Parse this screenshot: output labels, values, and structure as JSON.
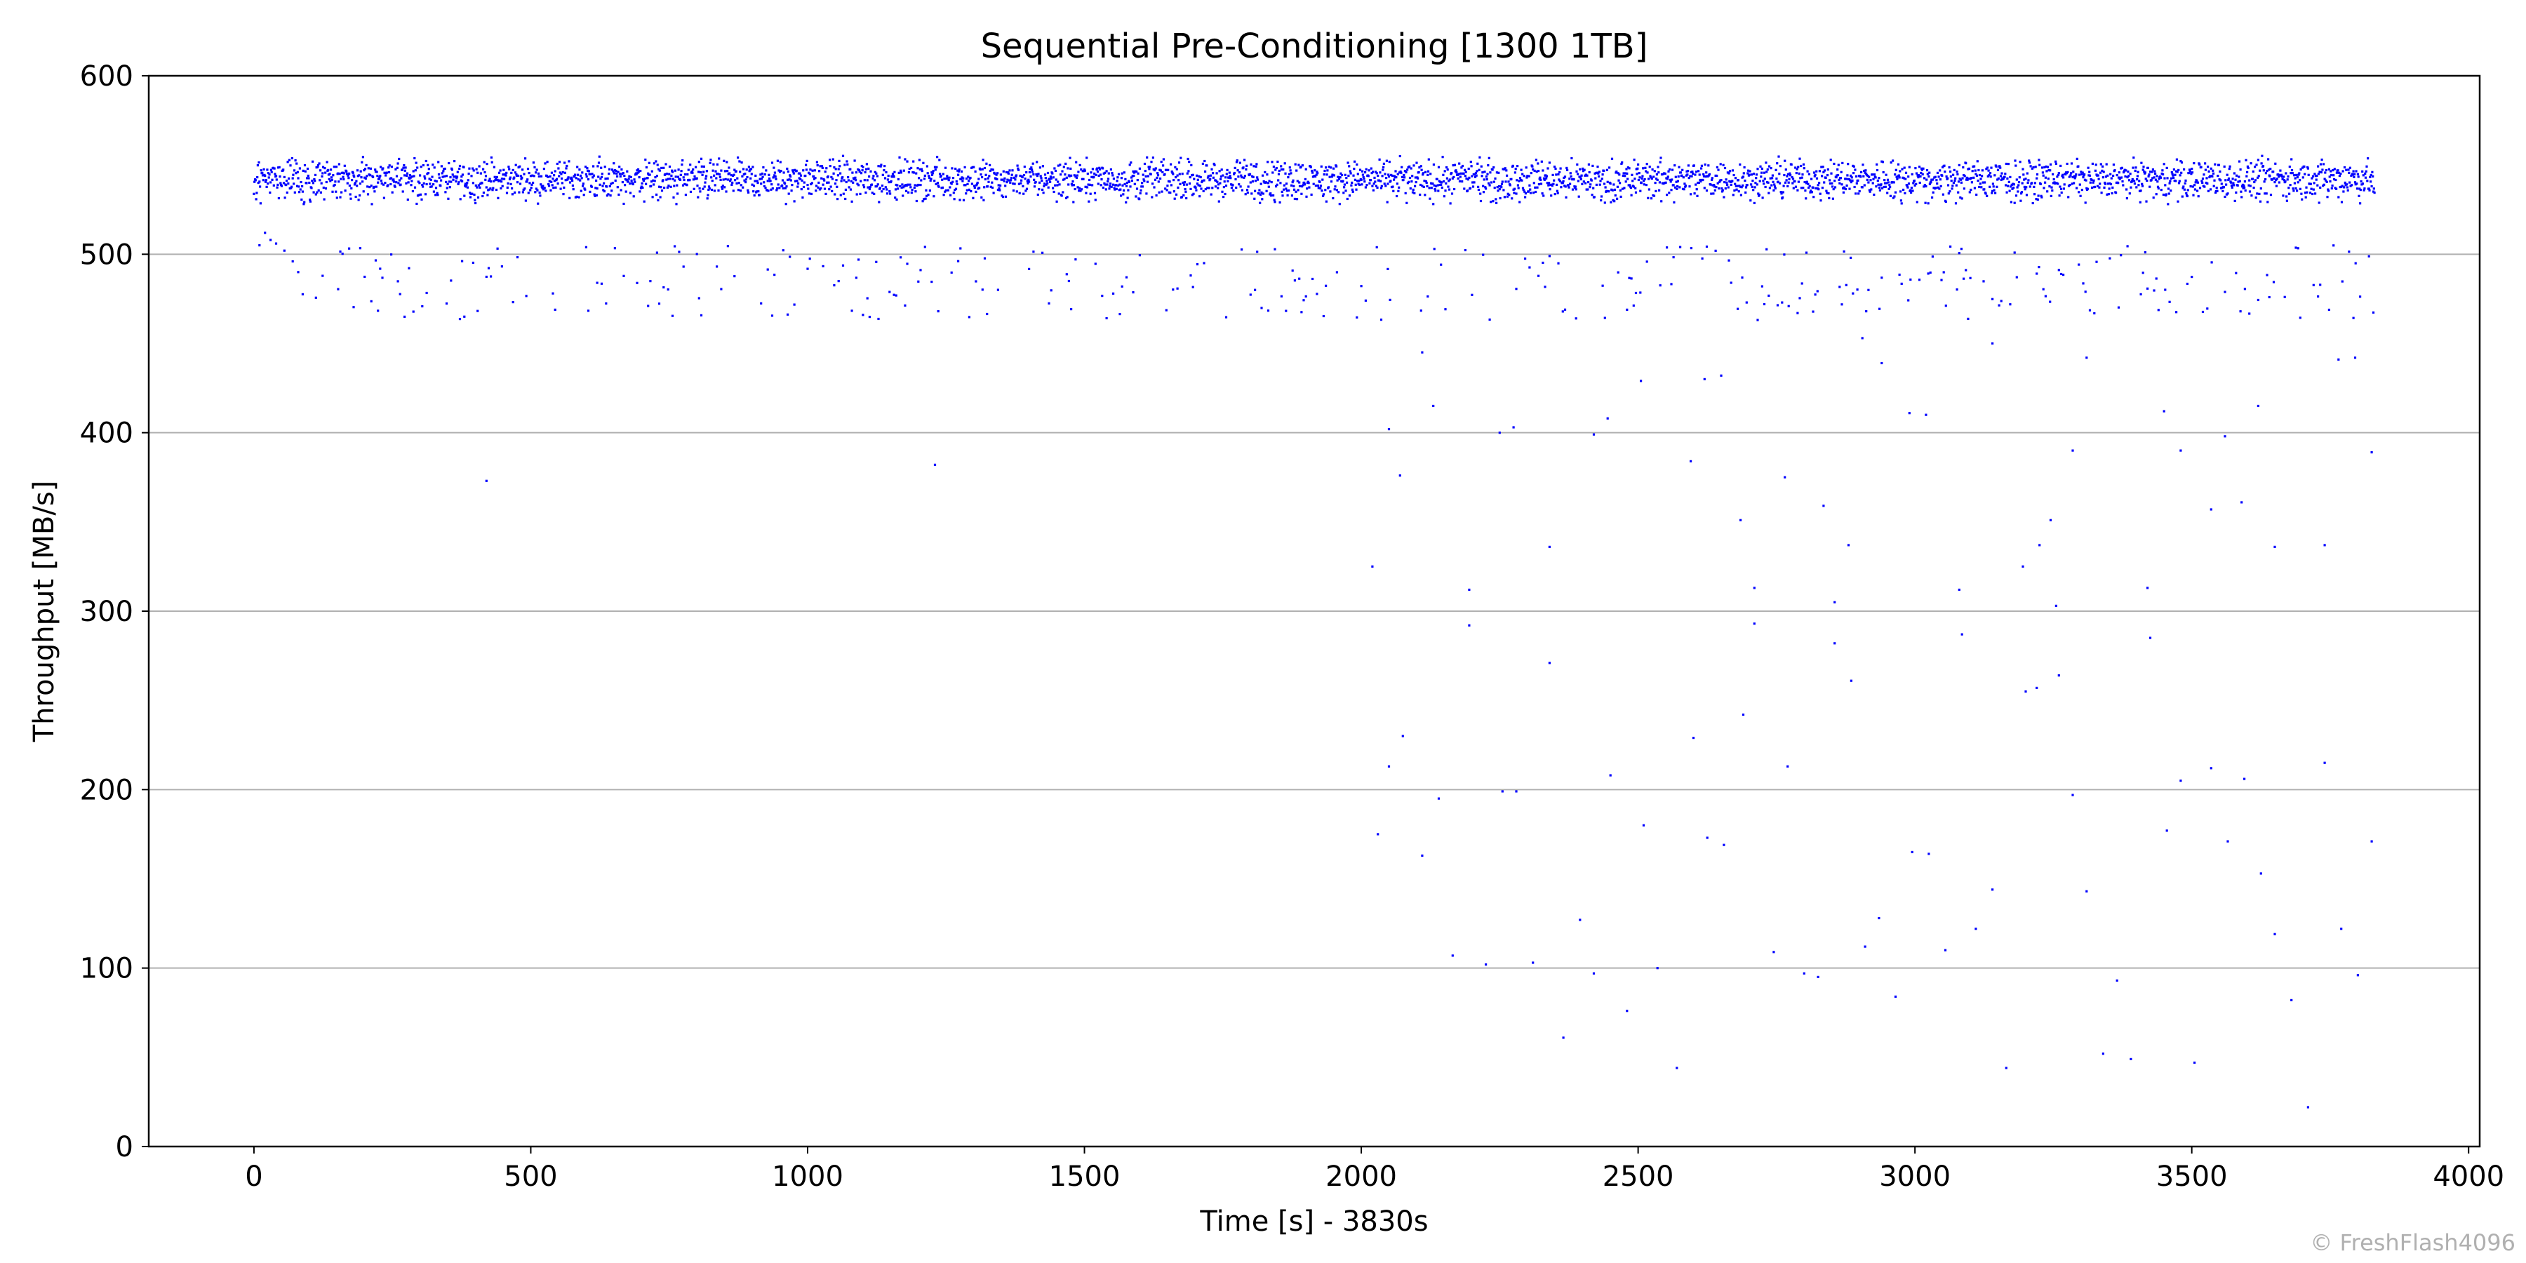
{
  "chart_data": {
    "type": "scatter",
    "title": "Sequential Pre-Conditioning [1300 1TB]",
    "xlabel": "Time [s] - 3830s",
    "ylabel": "Throughput [MB/s]",
    "xlim": [
      -190,
      4020
    ],
    "ylim": [
      0,
      600
    ],
    "xticks": [
      0,
      500,
      1000,
      1500,
      2000,
      2500,
      3000,
      3500,
      4000
    ],
    "yticks": [
      0,
      100,
      200,
      300,
      400,
      500,
      600
    ],
    "grid": "horizontal",
    "marker_color": "#0000ff",
    "series": [
      {
        "name": "",
        "band": {
          "x_start": 0,
          "x_end": 3830,
          "x_step": 1,
          "y_min": 528,
          "y_max": 557,
          "center": 542
        },
        "secondary_band": {
          "x_start": 60,
          "x_end": 3830,
          "y_min": 463,
          "y_max": 505
        },
        "outliers": [
          [
            10,
            505
          ],
          [
            20,
            512
          ],
          [
            30,
            508
          ],
          [
            40,
            506
          ],
          [
            55,
            502
          ],
          [
            70,
            496
          ],
          [
            80,
            490
          ],
          [
            420,
            373
          ],
          [
            1230,
            382
          ],
          [
            2020,
            325
          ],
          [
            2030,
            175
          ],
          [
            2050,
            213
          ],
          [
            2050,
            402
          ],
          [
            2070,
            376
          ],
          [
            2075,
            230
          ],
          [
            2110,
            445
          ],
          [
            2110,
            163
          ],
          [
            2130,
            415
          ],
          [
            2140,
            195
          ],
          [
            2165,
            107
          ],
          [
            2195,
            312
          ],
          [
            2195,
            292
          ],
          [
            2225,
            102
          ],
          [
            2250,
            400
          ],
          [
            2255,
            199
          ],
          [
            2275,
            403
          ],
          [
            2280,
            199
          ],
          [
            2310,
            103
          ],
          [
            2340,
            336
          ],
          [
            2340,
            271
          ],
          [
            2365,
            61
          ],
          [
            2395,
            127
          ],
          [
            2420,
            97
          ],
          [
            2420,
            399
          ],
          [
            2445,
            408
          ],
          [
            2450,
            208
          ],
          [
            2480,
            76
          ],
          [
            2505,
            429
          ],
          [
            2510,
            180
          ],
          [
            2535,
            100
          ],
          [
            2570,
            44
          ],
          [
            2595,
            384
          ],
          [
            2600,
            229
          ],
          [
            2620,
            430
          ],
          [
            2625,
            173
          ],
          [
            2650,
            432
          ],
          [
            2655,
            169
          ],
          [
            2685,
            351
          ],
          [
            2690,
            242
          ],
          [
            2710,
            313
          ],
          [
            2710,
            293
          ],
          [
            2745,
            109
          ],
          [
            2765,
            375
          ],
          [
            2770,
            213
          ],
          [
            2800,
            97
          ],
          [
            2825,
            95
          ],
          [
            2835,
            359
          ],
          [
            2855,
            305
          ],
          [
            2855,
            282
          ],
          [
            2880,
            337
          ],
          [
            2885,
            261
          ],
          [
            2905,
            453
          ],
          [
            2910,
            112
          ],
          [
            2935,
            128
          ],
          [
            2940,
            439
          ],
          [
            2965,
            84
          ],
          [
            2990,
            411
          ],
          [
            2995,
            165
          ],
          [
            3020,
            410
          ],
          [
            3025,
            164
          ],
          [
            3055,
            110
          ],
          [
            3080,
            312
          ],
          [
            3085,
            287
          ],
          [
            3110,
            122
          ],
          [
            3140,
            450
          ],
          [
            3140,
            144
          ],
          [
            3165,
            44
          ],
          [
            3195,
            325
          ],
          [
            3200,
            255
          ],
          [
            3220,
            257
          ],
          [
            3225,
            337
          ],
          [
            3245,
            351
          ],
          [
            3255,
            303
          ],
          [
            3260,
            264
          ],
          [
            3285,
            390
          ],
          [
            3285,
            197
          ],
          [
            3310,
            442
          ],
          [
            3310,
            143
          ],
          [
            3340,
            52
          ],
          [
            3365,
            93
          ],
          [
            3390,
            49
          ],
          [
            3420,
            313
          ],
          [
            3425,
            285
          ],
          [
            3450,
            412
          ],
          [
            3455,
            177
          ],
          [
            3480,
            390
          ],
          [
            3480,
            205
          ],
          [
            3505,
            47
          ],
          [
            3535,
            357
          ],
          [
            3535,
            212
          ],
          [
            3560,
            398
          ],
          [
            3565,
            171
          ],
          [
            3590,
            361
          ],
          [
            3595,
            206
          ],
          [
            3620,
            415
          ],
          [
            3625,
            153
          ],
          [
            3650,
            336
          ],
          [
            3650,
            119
          ],
          [
            3680,
            82
          ],
          [
            3710,
            22
          ],
          [
            3740,
            337
          ],
          [
            3740,
            215
          ],
          [
            3765,
            441
          ],
          [
            3770,
            122
          ],
          [
            3795,
            442
          ],
          [
            3800,
            96
          ],
          [
            3825,
            389
          ],
          [
            3825,
            171
          ]
        ]
      }
    ]
  },
  "watermark": "© FreshFlash4096"
}
